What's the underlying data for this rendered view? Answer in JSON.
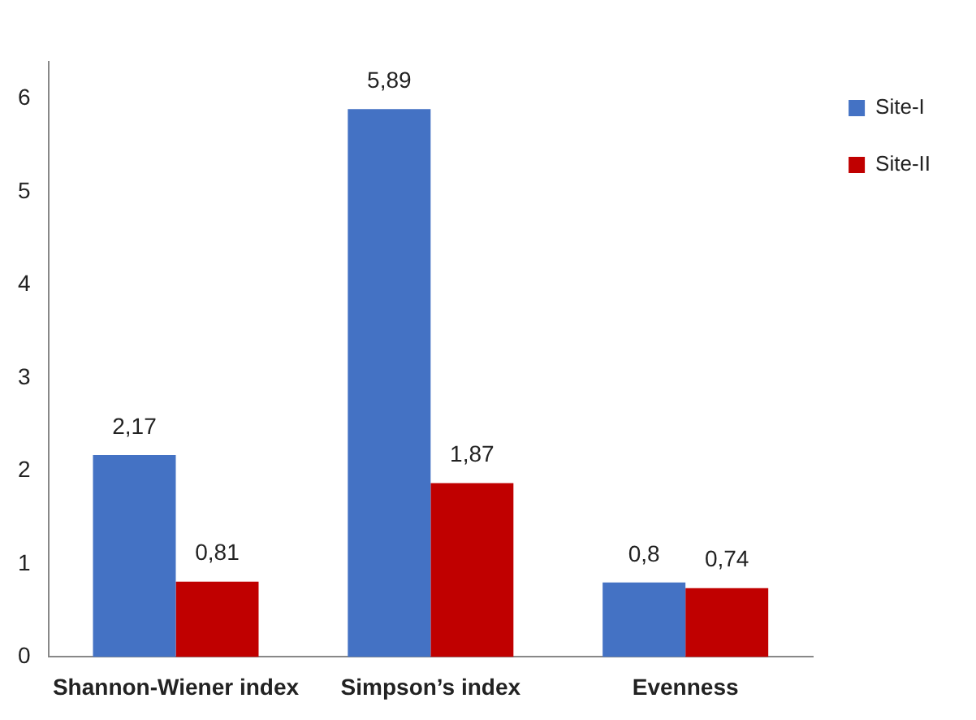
{
  "chart_data": {
    "type": "bar",
    "categories": [
      "Shannon-Wiener index",
      "Simpson’s index",
      "Evenness"
    ],
    "series": [
      {
        "name": "Site-I",
        "color": "#4472c4",
        "values": [
          2.17,
          5.89,
          0.8
        ],
        "value_labels": [
          "2,17",
          "5,89",
          "0,8"
        ]
      },
      {
        "name": "Site-II",
        "color": "#c00000",
        "values": [
          0.81,
          1.87,
          0.74
        ],
        "value_labels": [
          "0,81",
          "1,87",
          "0,74"
        ]
      }
    ],
    "ylim": [
      0,
      6.4
    ],
    "yticks": [
      0,
      1,
      2,
      3,
      4,
      5,
      6
    ],
    "grid": false,
    "legend": "top right"
  }
}
